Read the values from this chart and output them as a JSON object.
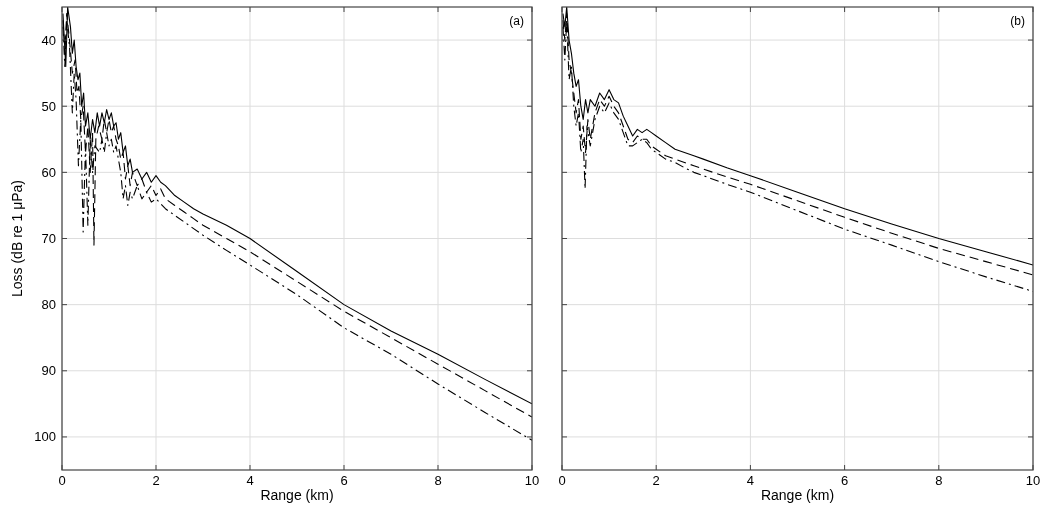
{
  "chart_data": [
    {
      "type": "line",
      "xlabel": "Range (km)",
      "ylabel": "Loss (dB re 1 μPa)",
      "annotations": [
        "(a)"
      ],
      "xlim": [
        0,
        10
      ],
      "xticks": [
        0,
        2,
        4,
        6,
        8,
        10
      ],
      "ylim": [
        105,
        35
      ],
      "yticks": [
        40,
        50,
        60,
        70,
        80,
        90,
        100
      ],
      "grid": true,
      "series": [
        {
          "color": "#000000",
          "line_style": "solid",
          "x": [
            0.02,
            0.08,
            0.12,
            0.18,
            0.22,
            0.26,
            0.3,
            0.34,
            0.38,
            0.42,
            0.46,
            0.5,
            0.55,
            0.6,
            0.65,
            0.7,
            0.75,
            0.8,
            0.85,
            0.9,
            0.95,
            1.0,
            1.05,
            1.1,
            1.15,
            1.2,
            1.25,
            1.3,
            1.35,
            1.4,
            1.45,
            1.5,
            1.6,
            1.7,
            1.8,
            1.9,
            2.0,
            2.1,
            2.2,
            2.4,
            2.6,
            2.8,
            3.0,
            3.5,
            4,
            5,
            6,
            7,
            8,
            9,
            10
          ],
          "values": [
            36,
            44,
            35,
            38,
            42,
            40,
            44,
            46,
            45,
            50,
            48,
            53,
            51,
            55,
            52,
            54,
            51,
            53,
            51,
            52.5,
            50.5,
            52,
            51,
            53,
            52.5,
            55,
            54,
            57,
            56,
            59,
            58,
            60,
            59.5,
            61,
            60,
            61.5,
            60.5,
            61.5,
            62,
            63.5,
            64.5,
            65.5,
            66.3,
            68,
            70,
            75,
            80,
            84,
            87.5,
            91.3,
            95
          ]
        },
        {
          "color": "#000000",
          "line_style": "dashed",
          "x": [
            0.02,
            0.06,
            0.1,
            0.16,
            0.22,
            0.28,
            0.32,
            0.36,
            0.4,
            0.45,
            0.5,
            0.55,
            0.6,
            0.65,
            0.68,
            0.72,
            0.78,
            0.85,
            0.9,
            0.95,
            1.0,
            1.05,
            1.1,
            1.15,
            1.2,
            1.25,
            1.3,
            1.35,
            1.4,
            1.45,
            1.5,
            1.6,
            1.7,
            1.8,
            1.9,
            2.0,
            2.1,
            2.2,
            2.4,
            2.6,
            2.8,
            3.0,
            3.5,
            4,
            5,
            6,
            7,
            8,
            9,
            10
          ],
          "values": [
            37,
            42,
            36,
            40,
            45,
            43,
            48,
            47,
            52,
            50,
            57,
            53,
            60,
            54,
            71,
            55,
            53,
            55,
            52,
            54,
            52,
            54,
            53,
            55,
            56,
            58,
            57,
            61,
            59,
            62,
            60,
            62,
            61,
            63,
            62,
            63.5,
            62.5,
            64,
            65,
            66,
            67,
            68,
            70,
            72,
            76.5,
            81,
            85,
            89,
            93,
            97
          ]
        },
        {
          "color": "#000000",
          "line_style": "dashdot",
          "x": [
            0.02,
            0.06,
            0.1,
            0.16,
            0.22,
            0.26,
            0.3,
            0.35,
            0.4,
            0.45,
            0.5,
            0.55,
            0.6,
            0.65,
            0.7,
            0.8,
            0.85,
            0.9,
            0.95,
            1.0,
            1.05,
            1.1,
            1.15,
            1.2,
            1.25,
            1.3,
            1.35,
            1.4,
            1.45,
            1.5,
            1.6,
            1.7,
            1.8,
            1.9,
            2.0,
            2.2,
            2.4,
            2.6,
            2.8,
            3.0,
            3.5,
            4,
            5,
            6,
            7,
            8,
            9,
            10
          ],
          "values": [
            38,
            44,
            37,
            41,
            51,
            45,
            49,
            59,
            52,
            69,
            56,
            68,
            55,
            60,
            56,
            57,
            55,
            57,
            54,
            56,
            55,
            57,
            56,
            58,
            60,
            64,
            62,
            65,
            63,
            64,
            62,
            64,
            63,
            64.5,
            64,
            65.5,
            66.5,
            67.5,
            68.5,
            69.5,
            71.8,
            74,
            78.5,
            83.5,
            87.5,
            92,
            96.3,
            100.5
          ]
        }
      ]
    },
    {
      "type": "line",
      "xlabel": "Range (km)",
      "annotations": [
        "(b)"
      ],
      "xlim": [
        0,
        10
      ],
      "xticks": [
        0,
        2,
        4,
        6,
        8,
        10
      ],
      "ylim": [
        105,
        35
      ],
      "yticks": [
        40,
        50,
        60,
        70,
        80,
        90,
        100
      ],
      "grid": true,
      "tick_labels": "x",
      "series": [
        {
          "color": "#000000",
          "line_style": "solid",
          "x": [
            0.02,
            0.06,
            0.1,
            0.15,
            0.2,
            0.25,
            0.3,
            0.35,
            0.4,
            0.45,
            0.5,
            0.55,
            0.6,
            0.7,
            0.8,
            0.9,
            1.0,
            1.1,
            1.2,
            1.3,
            1.4,
            1.5,
            1.6,
            1.7,
            1.8,
            1.9,
            2.0,
            2.2,
            2.4,
            2.6,
            2.8,
            3.0,
            3.5,
            4,
            5,
            6,
            7,
            8,
            9,
            10
          ],
          "values": [
            36,
            38,
            35,
            40,
            42,
            45,
            47,
            46,
            50,
            52,
            49,
            51,
            49,
            50,
            48,
            49,
            47.5,
            49,
            49.5,
            51.5,
            53,
            54.5,
            53.5,
            54,
            53.5,
            54,
            54.5,
            55.5,
            56.5,
            57,
            57.5,
            58,
            59.3,
            60.5,
            63,
            65.5,
            67.8,
            70,
            72,
            74
          ]
        },
        {
          "color": "#000000",
          "line_style": "dashed",
          "x": [
            0.02,
            0.06,
            0.1,
            0.15,
            0.2,
            0.25,
            0.3,
            0.35,
            0.4,
            0.45,
            0.5,
            0.55,
            0.6,
            0.7,
            0.8,
            0.9,
            1.0,
            1.1,
            1.2,
            1.3,
            1.4,
            1.5,
            1.6,
            1.7,
            1.8,
            1.9,
            2.0,
            2.2,
            2.4,
            2.6,
            2.8,
            3.0,
            3.5,
            4,
            5,
            6,
            7,
            8,
            9,
            10
          ],
          "values": [
            37,
            40,
            36,
            43,
            45,
            48,
            51,
            49,
            55,
            53,
            57,
            52,
            55,
            51,
            49,
            50,
            48.5,
            50,
            51,
            53,
            55,
            55.5,
            54.5,
            55,
            55,
            56,
            56.5,
            57.5,
            58,
            58.5,
            59,
            59.5,
            60.7,
            61.8,
            64.3,
            66.8,
            69.2,
            71.5,
            73.5,
            75.5
          ]
        },
        {
          "color": "#000000",
          "line_style": "dashdot",
          "x": [
            0.02,
            0.06,
            0.1,
            0.15,
            0.2,
            0.25,
            0.3,
            0.35,
            0.4,
            0.45,
            0.49,
            0.53,
            0.6,
            0.7,
            0.8,
            0.9,
            1.0,
            1.1,
            1.2,
            1.3,
            1.4,
            1.5,
            1.6,
            1.7,
            1.8,
            1.9,
            2.0,
            2.2,
            2.4,
            2.6,
            2.8,
            3.0,
            3.5,
            4,
            5,
            6,
            7,
            8,
            9,
            10
          ],
          "values": [
            38,
            43,
            37,
            46,
            44,
            50,
            53,
            51,
            57,
            55,
            62.5,
            53,
            56,
            52,
            50,
            51,
            49.5,
            51,
            52,
            54,
            56,
            56,
            55.5,
            55,
            55.5,
            56.5,
            57,
            58,
            58.5,
            59.3,
            60,
            60.5,
            61.8,
            63,
            65.8,
            68.6,
            71,
            73.5,
            75.8,
            78
          ]
        }
      ]
    }
  ]
}
